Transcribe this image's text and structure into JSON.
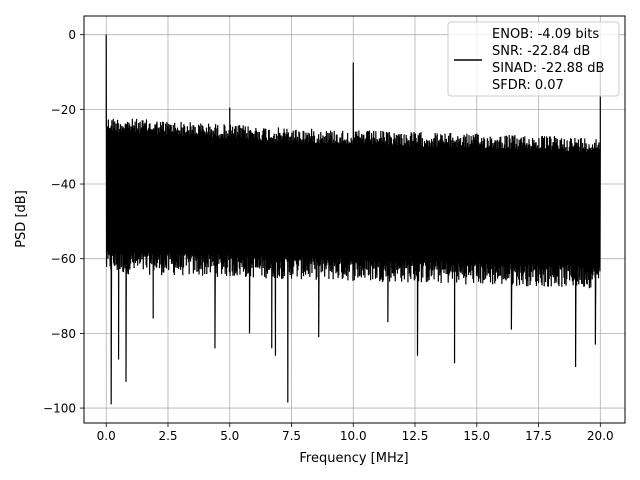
{
  "chart_data": {
    "type": "line",
    "title": "",
    "xlabel": "Frequency [MHz]",
    "ylabel": "PSD [dB]",
    "xlim": [
      -0.9,
      21.0
    ],
    "ylim": [
      -104,
      5
    ],
    "xticks": [
      0.0,
      2.5,
      5.0,
      7.5,
      10.0,
      12.5,
      15.0,
      17.5,
      20.0
    ],
    "xtick_labels": [
      "0.0",
      "2.5",
      "5.0",
      "7.5",
      "10.0",
      "12.5",
      "15.0",
      "17.5",
      "20.0"
    ],
    "yticks": [
      0,
      -20,
      -40,
      -60,
      -80,
      -100
    ],
    "ytick_labels": [
      "0",
      "−20",
      "−40",
      "−60",
      "−80",
      "−100"
    ],
    "grid": true,
    "legend_position": "top-right",
    "legend": {
      "entries": [
        "ENOB: -4.09 bits",
        "SNR: -22.84 dB",
        "SINAD: -22.88 dB",
        "SFDR: 0.07"
      ]
    },
    "series": [
      {
        "color": "#000000",
        "noise_floor": {
          "x": [
            0,
            2.5,
            5,
            7.5,
            10,
            12.5,
            15,
            17.5,
            20
          ],
          "upper": [
            -22,
            -23,
            -24,
            -25,
            -25.5,
            -26,
            -26.5,
            -27,
            -27.5
          ],
          "lower": [
            -62,
            -62.5,
            -63,
            -63.5,
            -64,
            -64.5,
            -65,
            -65.5,
            -66
          ]
        },
        "peaks": [
          {
            "x": 0.0,
            "y": 0.0
          },
          {
            "x": 5.0,
            "y": -19.5
          },
          {
            "x": 10.0,
            "y": -7.5
          },
          {
            "x": 20.0,
            "y": -7.5
          }
        ],
        "dips": [
          {
            "x": 0.2,
            "y": -99
          },
          {
            "x": 0.5,
            "y": -87
          },
          {
            "x": 0.8,
            "y": -93
          },
          {
            "x": 1.9,
            "y": -76
          },
          {
            "x": 4.4,
            "y": -84
          },
          {
            "x": 5.8,
            "y": -80
          },
          {
            "x": 6.7,
            "y": -84
          },
          {
            "x": 6.85,
            "y": -86
          },
          {
            "x": 7.35,
            "y": -98.5
          },
          {
            "x": 8.6,
            "y": -81
          },
          {
            "x": 11.4,
            "y": -77
          },
          {
            "x": 12.6,
            "y": -86
          },
          {
            "x": 14.1,
            "y": -88
          },
          {
            "x": 16.4,
            "y": -79
          },
          {
            "x": 19.0,
            "y": -89
          },
          {
            "x": 19.8,
            "y": -83
          }
        ]
      }
    ]
  }
}
